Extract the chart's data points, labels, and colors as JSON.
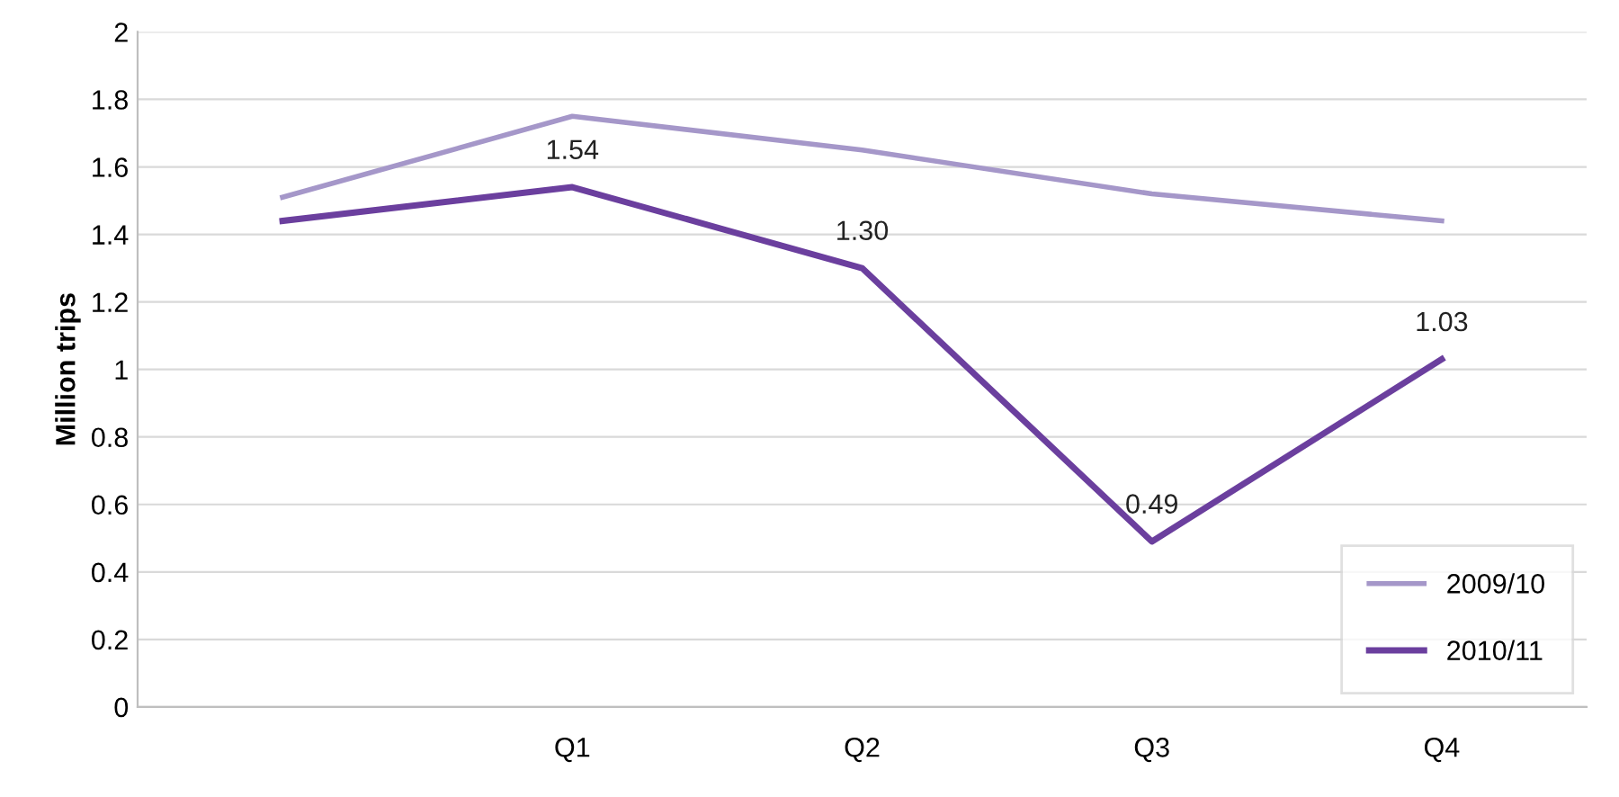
{
  "chart_data": {
    "type": "line",
    "ylabel": "Million trips",
    "categories": [
      null,
      "Q1",
      "Q2",
      "Q3",
      "Q4"
    ],
    "series": [
      {
        "name": "2009/10",
        "color": "#a597c9",
        "values": [
          1.51,
          1.75,
          1.65,
          1.52,
          1.44
        ]
      },
      {
        "name": "2010/11",
        "color": "#6b3f9e",
        "values": [
          1.44,
          1.54,
          1.3,
          0.49,
          1.03
        ],
        "value_labels": [
          null,
          "1.54",
          "1.30",
          "0.49",
          "1.03"
        ]
      }
    ],
    "ylim": [
      0,
      2
    ],
    "yticks": [
      0,
      0.2,
      0.4,
      0.6,
      0.8,
      1,
      1.2,
      1.4,
      1.6,
      1.8,
      2
    ],
    "grid": "y",
    "legend": "bottom right",
    "marker": "none",
    "line_style": "solid"
  }
}
